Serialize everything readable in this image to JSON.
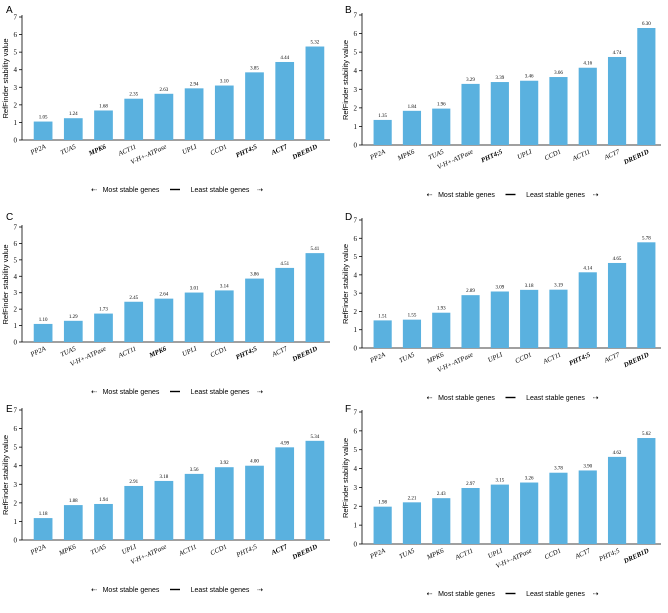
{
  "chart_data": [
    {
      "type": "bar",
      "panel": "A",
      "ylabel": "RefFinder stability value",
      "ylim": [
        0,
        7
      ],
      "yticks": [
        "0",
        "1",
        "2",
        "3",
        "4",
        "5",
        "6",
        "7"
      ],
      "categories": [
        "PP2A",
        "TUA5",
        "MPK6",
        "ACT11",
        "V-H+-ATPase",
        "UPLI",
        "CCD1",
        "PHT4;5",
        "ACT7",
        "DREB1D"
      ],
      "bold": [
        false,
        false,
        true,
        false,
        false,
        false,
        false,
        true,
        true,
        true
      ],
      "values": [
        1.05,
        1.24,
        1.68,
        2.35,
        2.63,
        2.94,
        3.1,
        3.85,
        4.44,
        5.32
      ],
      "labels": [
        "1.05",
        "1.24",
        "1.68",
        "2.35",
        "2.63",
        "2.94",
        "3.10",
        "3.85",
        "4.44",
        "5.32"
      ],
      "footer": {
        "left": "Most stable genes",
        "right": "Least stable genes"
      }
    },
    {
      "type": "bar",
      "panel": "B",
      "ylabel": "RefFinder stability value",
      "ylim": [
        0,
        7
      ],
      "yticks": [
        "0",
        "1",
        "2",
        "3",
        "4",
        "5",
        "6",
        "7"
      ],
      "categories": [
        "PP2A",
        "MPK6",
        "TUA5",
        "V-H+-ATPase",
        "PHT4;5",
        "UPLI",
        "CCD1",
        "ACT11",
        "ACT7",
        "DREB1D"
      ],
      "bold": [
        false,
        false,
        false,
        false,
        true,
        false,
        false,
        false,
        false,
        true
      ],
      "values": [
        1.35,
        1.84,
        1.96,
        3.29,
        3.39,
        3.46,
        3.66,
        4.16,
        4.74,
        6.3
      ],
      "labels": [
        "1.35",
        "1.84",
        "1.96",
        "3.29",
        "3.39",
        "3.46",
        "3.66",
        "4.16",
        "4.74",
        "6.30"
      ],
      "footer": {
        "left": "Most stable genes",
        "right": "Least stable genes"
      }
    },
    {
      "type": "bar",
      "panel": "C",
      "ylabel": "RefFinder stability value",
      "ylim": [
        0,
        7
      ],
      "yticks": [
        "0",
        "1",
        "2",
        "3",
        "4",
        "5",
        "6",
        "7"
      ],
      "categories": [
        "PP2A",
        "TUA5",
        "V-H+-ATPase",
        "ACT11",
        "MPK6",
        "UPLI",
        "CCD1",
        "PHT4;5",
        "ACT7",
        "DREB1D"
      ],
      "bold": [
        false,
        false,
        false,
        false,
        true,
        false,
        false,
        true,
        false,
        true
      ],
      "values": [
        1.1,
        1.29,
        1.73,
        2.45,
        2.64,
        3.01,
        3.14,
        3.86,
        4.51,
        5.41
      ],
      "labels": [
        "1.10",
        "1.29",
        "1.73",
        "2.45",
        "2.64",
        "3.01",
        "3.14",
        "3.86",
        "4.51",
        "5.41"
      ],
      "footer": {
        "left": "Most stable genes",
        "right": "Least stable genes"
      }
    },
    {
      "type": "bar",
      "panel": "D",
      "ylabel": "RefFinder stability value",
      "ylim": [
        0,
        7
      ],
      "yticks": [
        "0",
        "1",
        "2",
        "3",
        "4",
        "5",
        "6",
        "7"
      ],
      "categories": [
        "PP2A",
        "TUA5",
        "MPK6",
        "V-H+-ATPase",
        "UPLI",
        "CCD1",
        "ACT11",
        "PHT4;5",
        "ACT7",
        "DREB1D"
      ],
      "bold": [
        false,
        false,
        false,
        false,
        false,
        false,
        false,
        true,
        false,
        true
      ],
      "values": [
        1.51,
        1.55,
        1.93,
        2.89,
        3.09,
        3.18,
        3.19,
        4.14,
        4.65,
        5.78
      ],
      "labels": [
        "1.51",
        "1.55",
        "1.93",
        "2.89",
        "3.09",
        "3.18",
        "3.19",
        "4.14",
        "4.65",
        "5.78"
      ],
      "footer": {
        "left": "Most stable genes",
        "right": "Least stable genes"
      }
    },
    {
      "type": "bar",
      "panel": "E",
      "ylabel": "RefFinder stability value",
      "ylim": [
        0,
        7
      ],
      "yticks": [
        "0",
        "1",
        "2",
        "3",
        "4",
        "5",
        "6",
        "7"
      ],
      "categories": [
        "PP2A",
        "MPK6",
        "TUA5",
        "UPLI",
        "V-H+-ATPase",
        "ACT11",
        "CCD1",
        "PHT4;5",
        "ACT7",
        "DREB1D"
      ],
      "bold": [
        false,
        false,
        false,
        false,
        false,
        false,
        false,
        false,
        true,
        true
      ],
      "values": [
        1.18,
        1.88,
        1.94,
        2.91,
        3.18,
        3.56,
        3.92,
        4.0,
        4.99,
        5.34
      ],
      "labels": [
        "1.18",
        "1.88",
        "1.94",
        "2.91",
        "3.18",
        "3.56",
        "3.92",
        "4.00",
        "4.99",
        "5.34"
      ],
      "footer": {
        "left": "Most stable genes",
        "right": "Least stable genes"
      }
    },
    {
      "type": "bar",
      "panel": "F",
      "ylabel": "RefFinder stability value",
      "ylim": [
        0,
        7
      ],
      "yticks": [
        "0",
        "1",
        "2",
        "3",
        "4",
        "5",
        "6",
        "7"
      ],
      "categories": [
        "PP2A",
        "TUA5",
        "MPK6",
        "ACT11",
        "UPLI",
        "V-H+-ATPase",
        "CCD1",
        "ACT7",
        "PHT4;5",
        "DREB1D"
      ],
      "bold": [
        false,
        false,
        false,
        false,
        false,
        false,
        false,
        false,
        false,
        true
      ],
      "values": [
        1.98,
        2.21,
        2.43,
        2.97,
        3.15,
        3.26,
        3.78,
        3.9,
        4.62,
        5.62
      ],
      "labels": [
        "1.98",
        "2.21",
        "2.43",
        "2.97",
        "3.15",
        "3.26",
        "3.78",
        "3.90",
        "4.62",
        "5.62"
      ],
      "footer": {
        "left": "Most stable genes",
        "right": "Least stable genes"
      }
    }
  ]
}
